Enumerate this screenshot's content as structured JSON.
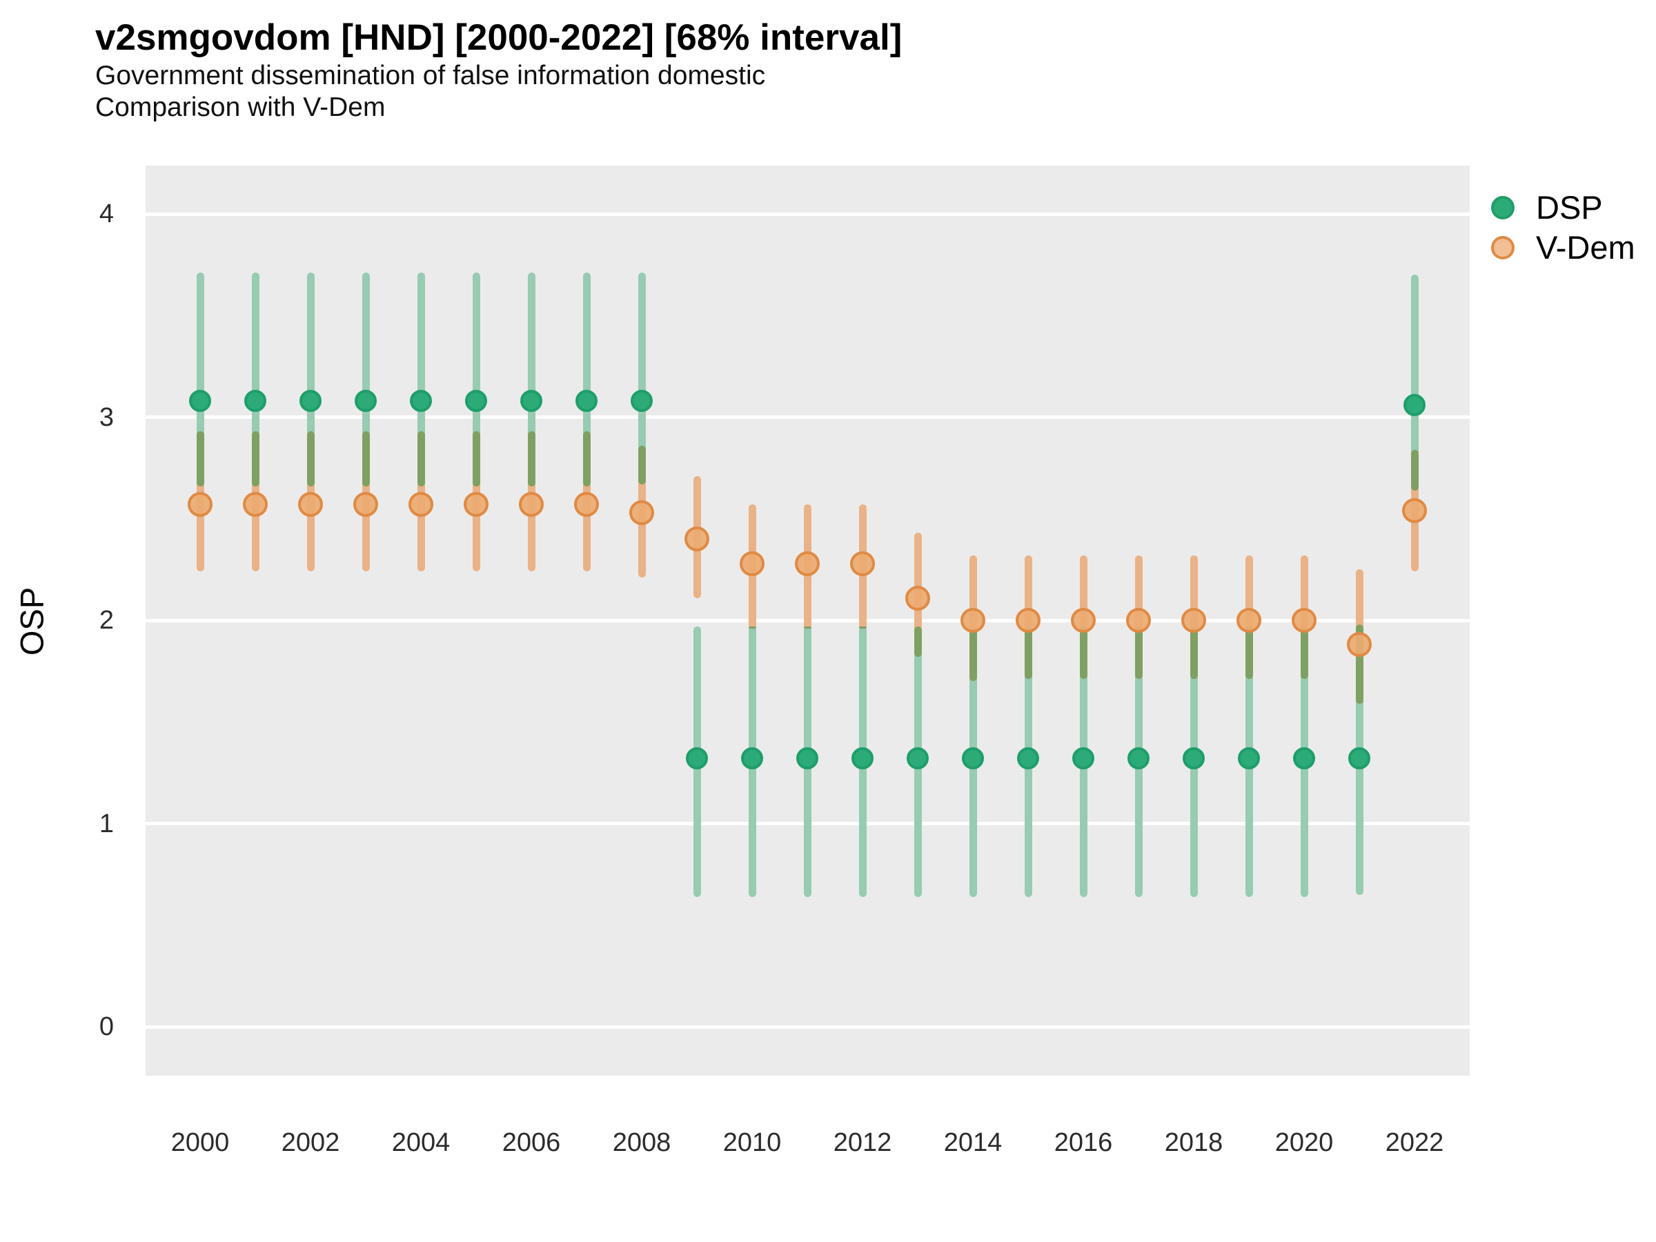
{
  "title": "v2smgovdom [HND] [2000-2022] [68% interval]",
  "subtitle_line1": "Government dissemination of false information domestic",
  "subtitle_line2": "Comparison with V-Dem",
  "y_axis_label": "OSP",
  "legend": {
    "items": [
      {
        "label": "DSP"
      },
      {
        "label": "V-Dem"
      }
    ]
  },
  "colors": {
    "panel_background": "#EBEBEB",
    "gridline": "#FFFFFF",
    "dsp_line": "#97CBB2",
    "dsp_dot_fill": "#2CAB79",
    "dsp_dot_stroke": "#1E9E6A",
    "vdem_line": "#E9B287",
    "vdem_dot_fill": "rgba(236,170,112,0.92)",
    "vdem_dot_stroke": "#E08A43",
    "vdem_legend_fill": "#F2BE93",
    "overlap_line": "#7FA063"
  },
  "chart_data": {
    "type": "pointrange",
    "title": "v2smgovdom [HND] [2000-2022] [68% interval]",
    "subtitle": "Government dissemination of false information domestic / Comparison with V-Dem",
    "xlabel": "",
    "ylabel": "OSP",
    "ylim": [
      -0.24,
      4.24
    ],
    "interval": "68%",
    "grid": "major-horizontal-white-on-gray",
    "legend_position": "right-top",
    "yticks": [
      0,
      1,
      2,
      3,
      4
    ],
    "xticks": [
      2000,
      2002,
      2004,
      2006,
      2008,
      2010,
      2012,
      2014,
      2016,
      2018,
      2020,
      2022
    ],
    "series_names": [
      "DSP",
      "V-Dem"
    ],
    "points": [
      {
        "year": 2000,
        "dsp": [
          2.66,
          3.08,
          3.71
        ],
        "vdem": [
          2.24,
          2.57,
          2.93
        ]
      },
      {
        "year": 2001,
        "dsp": [
          2.66,
          3.08,
          3.71
        ],
        "vdem": [
          2.24,
          2.57,
          2.93
        ]
      },
      {
        "year": 2002,
        "dsp": [
          2.66,
          3.08,
          3.71
        ],
        "vdem": [
          2.24,
          2.57,
          2.93
        ]
      },
      {
        "year": 2003,
        "dsp": [
          2.66,
          3.08,
          3.71
        ],
        "vdem": [
          2.24,
          2.57,
          2.93
        ]
      },
      {
        "year": 2004,
        "dsp": [
          2.66,
          3.08,
          3.71
        ],
        "vdem": [
          2.24,
          2.57,
          2.93
        ]
      },
      {
        "year": 2005,
        "dsp": [
          2.66,
          3.08,
          3.71
        ],
        "vdem": [
          2.24,
          2.57,
          2.93
        ]
      },
      {
        "year": 2006,
        "dsp": [
          2.66,
          3.08,
          3.71
        ],
        "vdem": [
          2.24,
          2.57,
          2.93
        ]
      },
      {
        "year": 2007,
        "dsp": [
          2.66,
          3.08,
          3.71
        ],
        "vdem": [
          2.24,
          2.57,
          2.93
        ]
      },
      {
        "year": 2008,
        "dsp": [
          2.67,
          3.08,
          3.71
        ],
        "vdem": [
          2.21,
          2.53,
          2.86
        ]
      },
      {
        "year": 2009,
        "dsp": [
          0.64,
          1.32,
          1.97
        ],
        "vdem": [
          2.11,
          2.4,
          2.71
        ]
      },
      {
        "year": 2010,
        "dsp": [
          0.64,
          1.32,
          1.97
        ],
        "vdem": [
          1.96,
          2.28,
          2.57
        ]
      },
      {
        "year": 2011,
        "dsp": [
          0.64,
          1.32,
          1.97
        ],
        "vdem": [
          1.96,
          2.28,
          2.57
        ]
      },
      {
        "year": 2012,
        "dsp": [
          0.64,
          1.32,
          1.97
        ],
        "vdem": [
          1.96,
          2.28,
          2.57
        ]
      },
      {
        "year": 2013,
        "dsp": [
          0.64,
          1.32,
          1.97
        ],
        "vdem": [
          1.82,
          2.11,
          2.43
        ]
      },
      {
        "year": 2014,
        "dsp": [
          0.64,
          1.32,
          1.96
        ],
        "vdem": [
          1.7,
          2.0,
          2.32
        ]
      },
      {
        "year": 2015,
        "dsp": [
          0.64,
          1.32,
          1.97
        ],
        "vdem": [
          1.71,
          2.0,
          2.32
        ]
      },
      {
        "year": 2016,
        "dsp": [
          0.64,
          1.32,
          1.97
        ],
        "vdem": [
          1.71,
          2.0,
          2.32
        ]
      },
      {
        "year": 2017,
        "dsp": [
          0.64,
          1.32,
          1.97
        ],
        "vdem": [
          1.71,
          2.0,
          2.32
        ]
      },
      {
        "year": 2018,
        "dsp": [
          0.64,
          1.32,
          1.97
        ],
        "vdem": [
          1.71,
          2.0,
          2.32
        ]
      },
      {
        "year": 2019,
        "dsp": [
          0.64,
          1.32,
          1.97
        ],
        "vdem": [
          1.71,
          2.0,
          2.32
        ]
      },
      {
        "year": 2020,
        "dsp": [
          0.64,
          1.32,
          1.97
        ],
        "vdem": [
          1.71,
          2.0,
          2.32
        ]
      },
      {
        "year": 2021,
        "dsp": [
          0.65,
          1.32,
          1.98
        ],
        "vdem": [
          1.59,
          1.88,
          2.25
        ]
      },
      {
        "year": 2022,
        "dsp": [
          2.64,
          3.06,
          3.7
        ],
        "vdem": [
          2.24,
          2.54,
          2.84
        ]
      }
    ]
  }
}
